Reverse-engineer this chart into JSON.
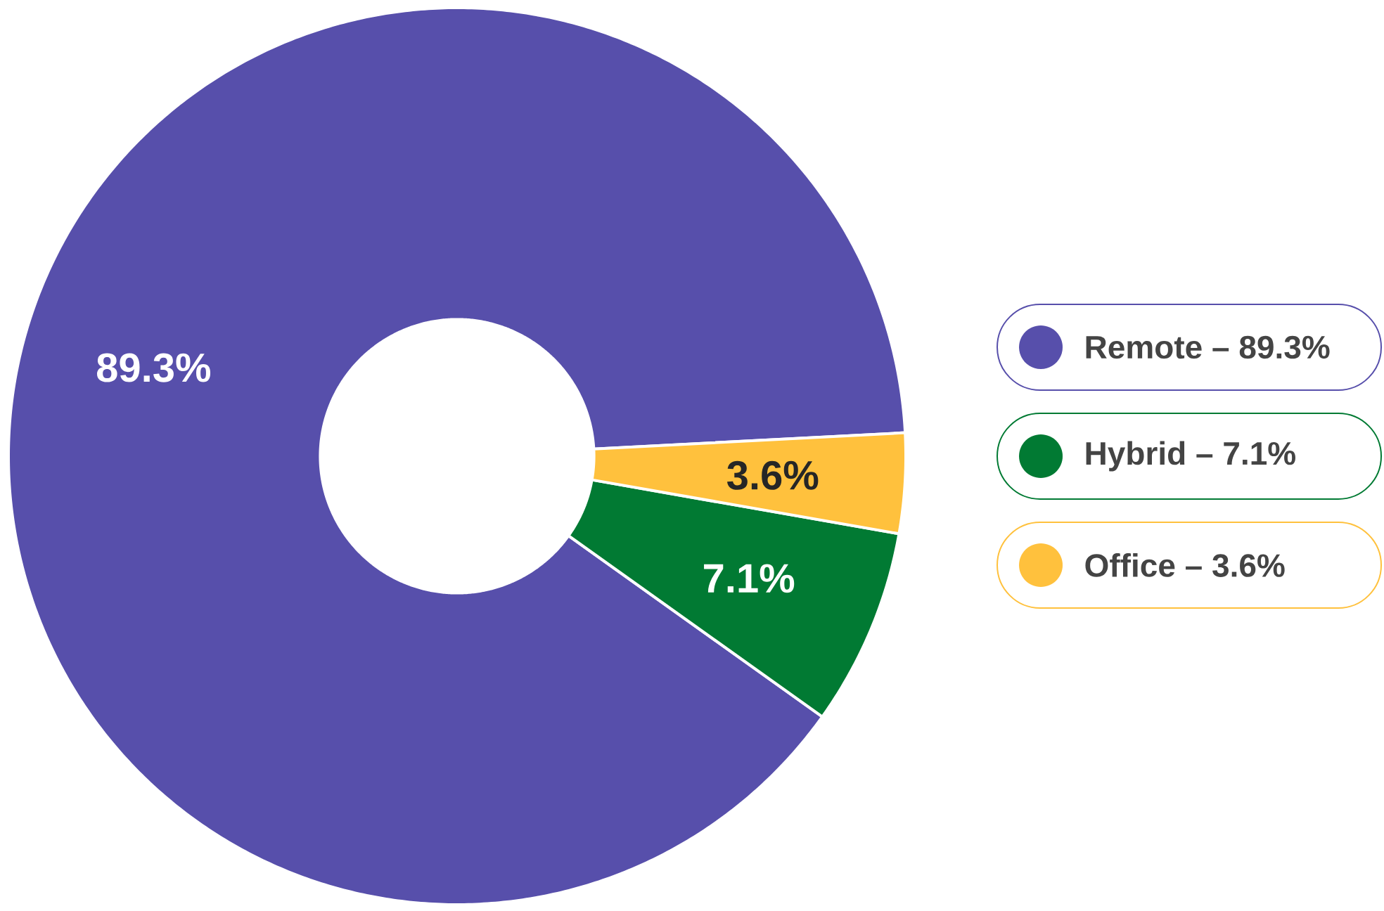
{
  "chart_data": {
    "type": "donut",
    "categories": [
      "Remote – 89.3%",
      "Hybrid – 7.1%",
      "Office – 3.6%"
    ],
    "values": [
      89.3,
      7.1,
      3.6
    ],
    "colors": [
      "#574fab",
      "#017a33",
      "#ffc13d"
    ],
    "value_labels": [
      "89.3%",
      "7.1%",
      "3.6%"
    ],
    "legend": "right"
  }
}
